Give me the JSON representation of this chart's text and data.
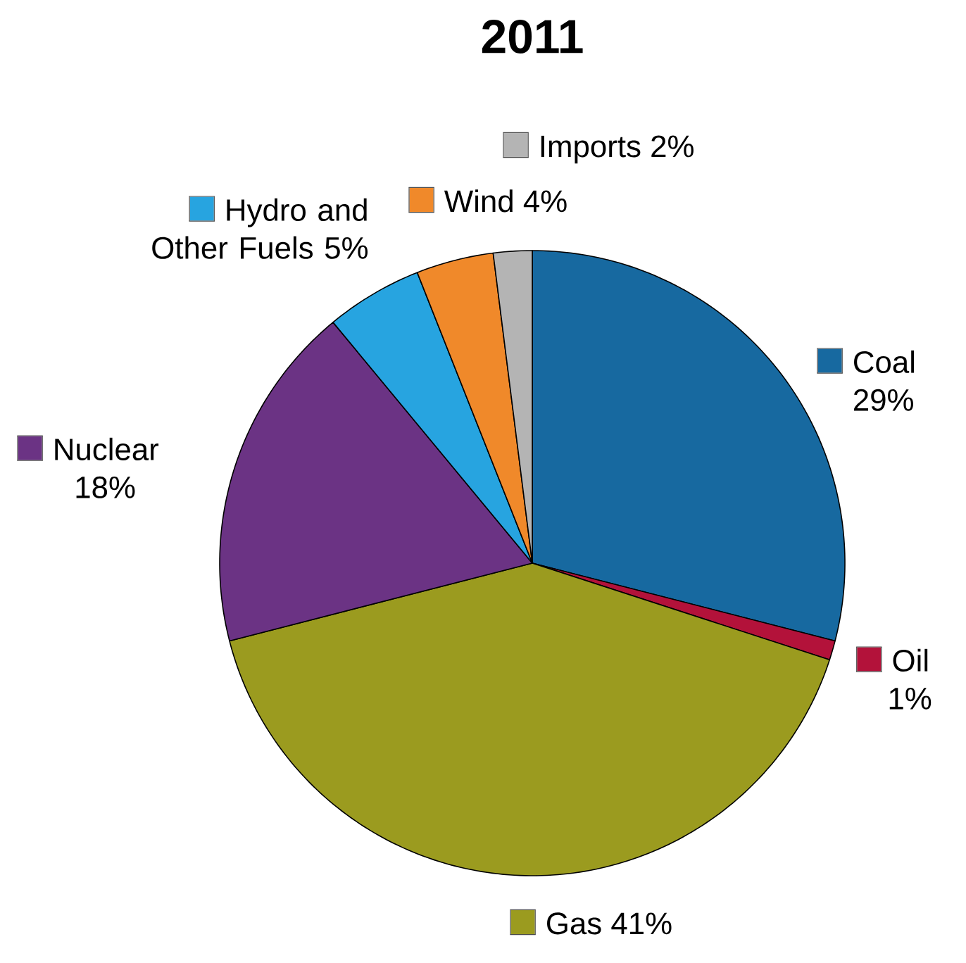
{
  "chart_data": {
    "type": "pie",
    "title": "2011",
    "categories": [
      "Coal",
      "Oil",
      "Gas",
      "Nuclear",
      "Hydro and Other Fuels",
      "Wind",
      "Imports"
    ],
    "values": [
      29,
      1,
      41,
      18,
      5,
      4,
      2
    ],
    "value_labels": [
      "29%",
      "1%",
      "41%",
      "18%",
      "5%",
      "4%",
      "2%"
    ],
    "legend": "top left",
    "colors": [
      "#1769a0",
      "#b3123a",
      "#9b9b1f",
      "#6b3384",
      "#27a4e0",
      "#f0892a",
      "#b4b4b4"
    ]
  }
}
